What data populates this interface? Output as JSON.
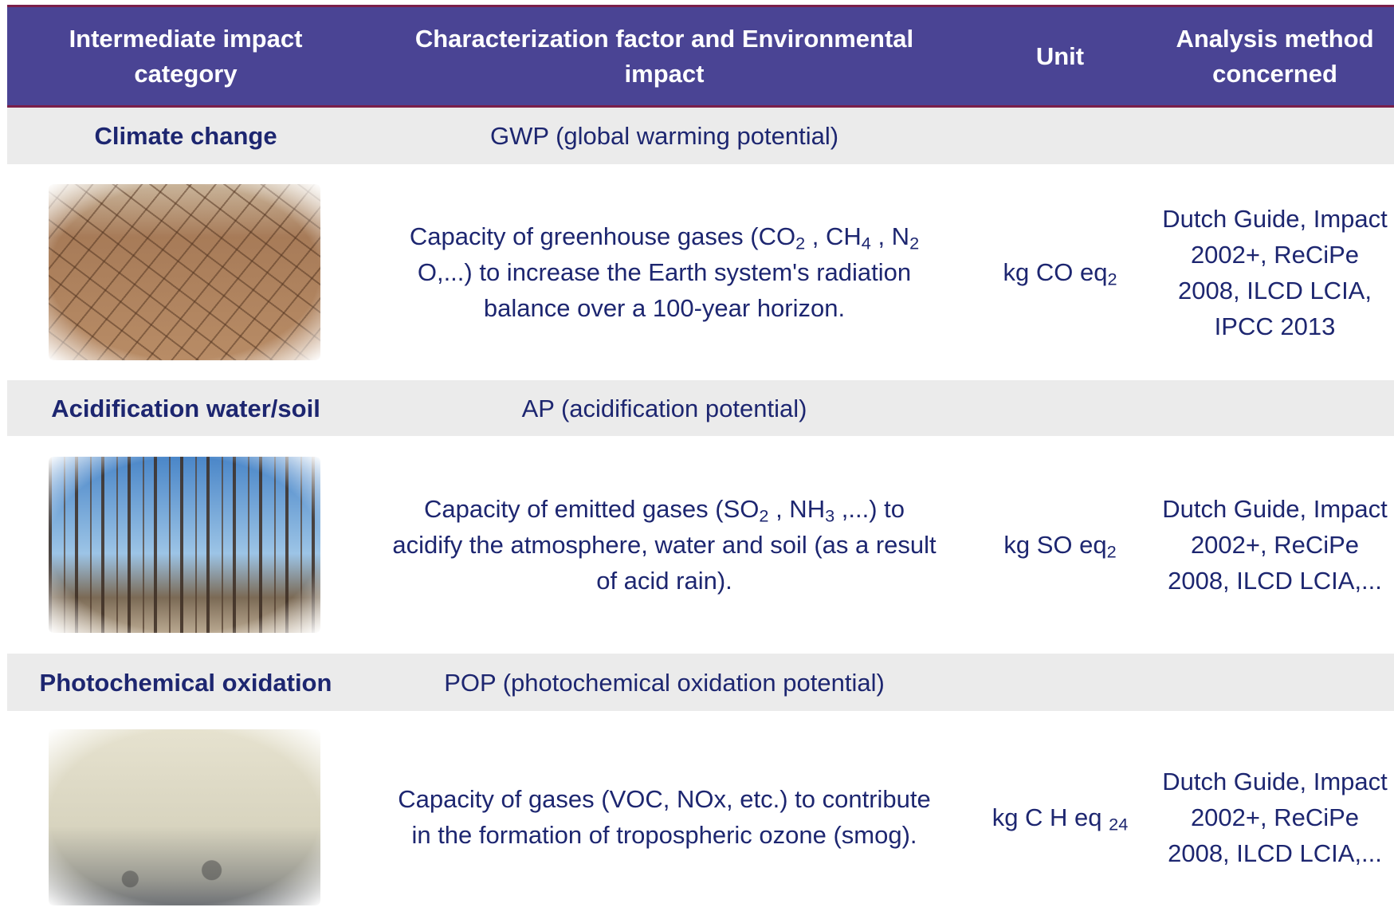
{
  "header": [
    "Intermediate impact category",
    "Characterization factor and Environmental impact",
    "Unit",
    "Analysis method concerned"
  ],
  "categories": [
    {
      "name": "Climate change",
      "factor": "GWP (global warming potential)",
      "description": [
        {
          "text": "Capacity of greenhouse gases (CO"
        },
        {
          "sub": "2"
        },
        {
          "text": " , CH"
        },
        {
          "sub": "4"
        },
        {
          "text": " , N"
        },
        {
          "sub": "2"
        },
        {
          "text": " O,...) to increase the Earth system's radiation balance over a 100-year horizon."
        }
      ],
      "unit": [
        {
          "text": "kg CO eq"
        },
        {
          "sub": "2"
        }
      ],
      "methods": "Dutch Guide, Impact 2002+, ReCiPe 2008, ILCD LCIA, IPCC 2013"
    },
    {
      "name": "Acidification water/soil",
      "factor": "AP (acidification potential)",
      "description": [
        {
          "text": "Capacity of emitted gases (SO"
        },
        {
          "sub": "2"
        },
        {
          "text": " , NH"
        },
        {
          "sub": "3"
        },
        {
          "text": " ,...) to acidify the atmosphere, water and soil (as a result of acid rain)."
        }
      ],
      "unit": [
        {
          "text": "kg SO eq"
        },
        {
          "sub": "2"
        }
      ],
      "methods": "Dutch Guide, Impact 2002+, ReCiPe 2008, ILCD LCIA,..."
    },
    {
      "name": "Photochemical oxidation",
      "factor": "POP (photochemical oxidation potential)",
      "description": [
        {
          "text": "Capacity of gases (VOC, NOx, etc.) to contribute in the formation of tropospheric ozone (smog)."
        }
      ],
      "unit": [
        {
          "text": "kg C H eq "
        },
        {
          "sub": "24"
        }
      ],
      "methods": "Dutch Guide, Impact 2002+, ReCiPe 2008, ILCD LCIA,..."
    }
  ]
}
